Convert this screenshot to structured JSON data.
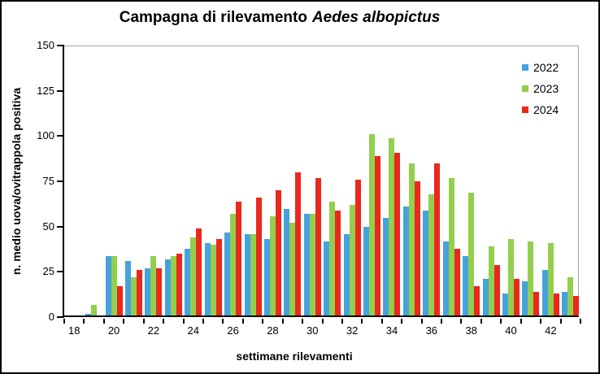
{
  "title": {
    "regular": "Campagna di rilevamento",
    "italic": "Aedes albopictus"
  },
  "chart_data": {
    "type": "bar",
    "title": "Campagna di rilevamento Aedes albopictus",
    "xlabel": "settimane rilevamenti",
    "ylabel": "n. medio uova/ovitrappola positiva",
    "ylim": [
      0,
      150
    ],
    "yticks": [
      0,
      25,
      50,
      75,
      100,
      125,
      150
    ],
    "categories": [
      18,
      19,
      20,
      21,
      22,
      23,
      24,
      25,
      26,
      27,
      28,
      29,
      30,
      31,
      32,
      33,
      34,
      35,
      36,
      37,
      38,
      39,
      40,
      41,
      42,
      43
    ],
    "xticks": [
      18,
      20,
      22,
      24,
      26,
      28,
      30,
      32,
      34,
      36,
      38,
      40,
      42
    ],
    "grid": false,
    "legend_position": "top-right-inside",
    "series": [
      {
        "name": "2022",
        "color": "#44A3DC",
        "values": [
          0,
          1,
          33,
          30,
          26,
          31,
          37,
          40,
          46,
          45,
          42,
          59,
          56,
          41,
          45,
          49,
          54,
          60,
          58,
          41,
          33,
          20,
          12,
          19,
          25,
          13
        ]
      },
      {
        "name": "2023",
        "color": "#93CE4F",
        "values": [
          0,
          6,
          33,
          21,
          33,
          33,
          43,
          39,
          56,
          45,
          55,
          51,
          56,
          63,
          61,
          100,
          98,
          84,
          67,
          76,
          68,
          38,
          42,
          41,
          40,
          21
        ]
      },
      {
        "name": "2024",
        "color": "#EB281C",
        "values": [
          0,
          0,
          16,
          25,
          26,
          34,
          48,
          42,
          63,
          65,
          69,
          79,
          76,
          58,
          75,
          88,
          90,
          74,
          84,
          37,
          16,
          28,
          20,
          13,
          12,
          11
        ]
      }
    ]
  }
}
